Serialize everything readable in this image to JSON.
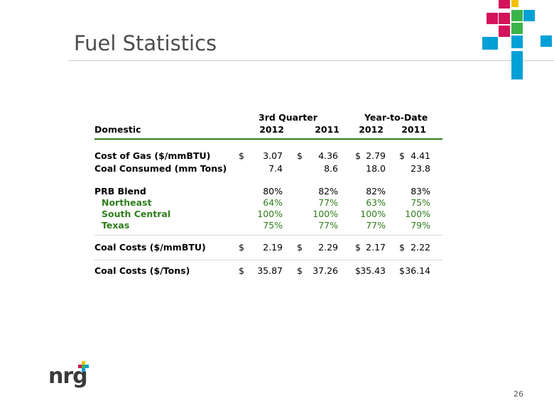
{
  "title": "Fuel Statistics",
  "page_number": "26",
  "logo_text": "nrg",
  "colors": {
    "accent_green": "#2e7d1b",
    "magenta": "#d4145a",
    "cyan": "#00a0d6",
    "yellow": "#f2c200",
    "green": "#3bb44a"
  },
  "table": {
    "group_headers": [
      "3rd Quarter",
      "Year-to-Date"
    ],
    "section_label": "Domestic",
    "years": [
      "2012",
      "2011",
      "2012",
      "2011"
    ],
    "rows": [
      {
        "label": "Cost of Gas ($/mmBTU)",
        "values": [
          "3.07",
          "4.36",
          "2.79",
          "4.41"
        ],
        "dollar": true
      },
      {
        "label": "Coal Consumed (mm Tons)",
        "values": [
          "7.4",
          "8.6",
          "18.0",
          "23.8"
        ],
        "dollar": false
      },
      {
        "label": "PRB Blend",
        "values": [
          "80%",
          "82%",
          "82%",
          "83%"
        ],
        "dollar": false
      },
      {
        "label": "Northeast",
        "values": [
          "64%",
          "77%",
          "63%",
          "75%"
        ],
        "dollar": false,
        "sub": true
      },
      {
        "label": "South Central",
        "values": [
          "100%",
          "100%",
          "100%",
          "100%"
        ],
        "dollar": false,
        "sub": true
      },
      {
        "label": "Texas",
        "values": [
          "75%",
          "77%",
          "77%",
          "79%"
        ],
        "dollar": false,
        "sub": true
      },
      {
        "label": "Coal Costs ($/mmBTU)",
        "values": [
          "2.19",
          "2.29",
          "2.17",
          "2.22"
        ],
        "dollar": true
      },
      {
        "label": "Coal Costs ($/Tons)",
        "values": [
          "35.87",
          "37.26",
          "35.43",
          "36.14"
        ],
        "dollar": true
      }
    ],
    "currency_symbol": "$"
  }
}
